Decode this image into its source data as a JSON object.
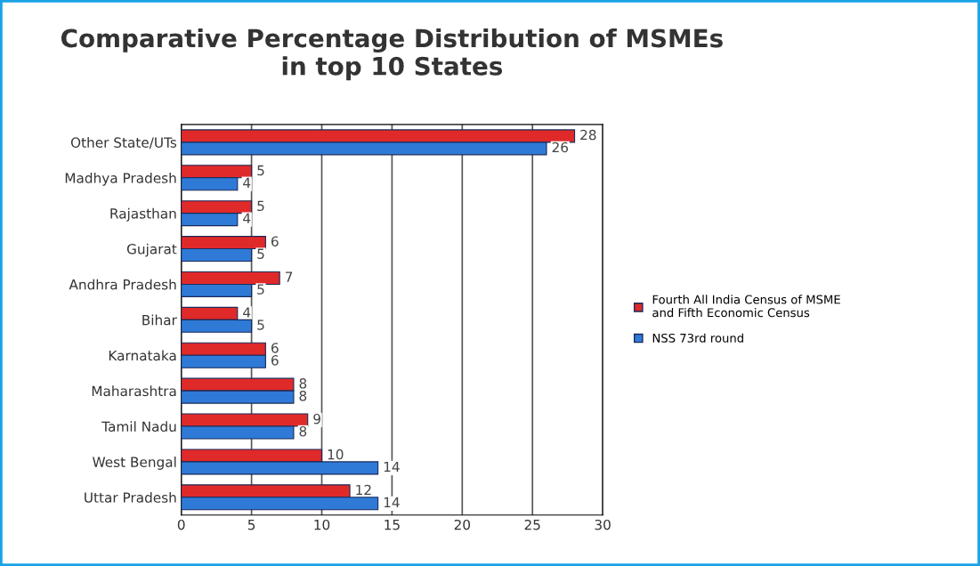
{
  "chart_data": {
    "type": "bar",
    "orientation": "horizontal",
    "title": "Comparative Percentage Distribution of MSMEs\nin top 10 States",
    "categories": [
      "Other State/UTs",
      "Madhya Pradesh",
      "Rajasthan",
      "Gujarat",
      "Andhra Pradesh",
      "Bihar",
      "Karnataka",
      "Maharashtra",
      "Tamil Nadu",
      "West Bengal",
      "Uttar Pradesh"
    ],
    "series": [
      {
        "name": "Fourth All India Census of MSME\nand Fifth Economic Census",
        "color": "#e02a2a",
        "values": [
          28,
          5,
          5,
          6,
          7,
          4,
          6,
          8,
          9,
          10,
          12
        ]
      },
      {
        "name": "NSS 73rd round",
        "color": "#2f7ad6",
        "values": [
          26,
          4,
          4,
          5,
          5,
          5,
          6,
          8,
          8,
          14,
          14
        ]
      }
    ],
    "xlim": [
      0,
      30
    ],
    "xticks": [
      0,
      5,
      10,
      15,
      20,
      25,
      30
    ],
    "grid": "x",
    "legend": "right",
    "data_labels": true
  }
}
